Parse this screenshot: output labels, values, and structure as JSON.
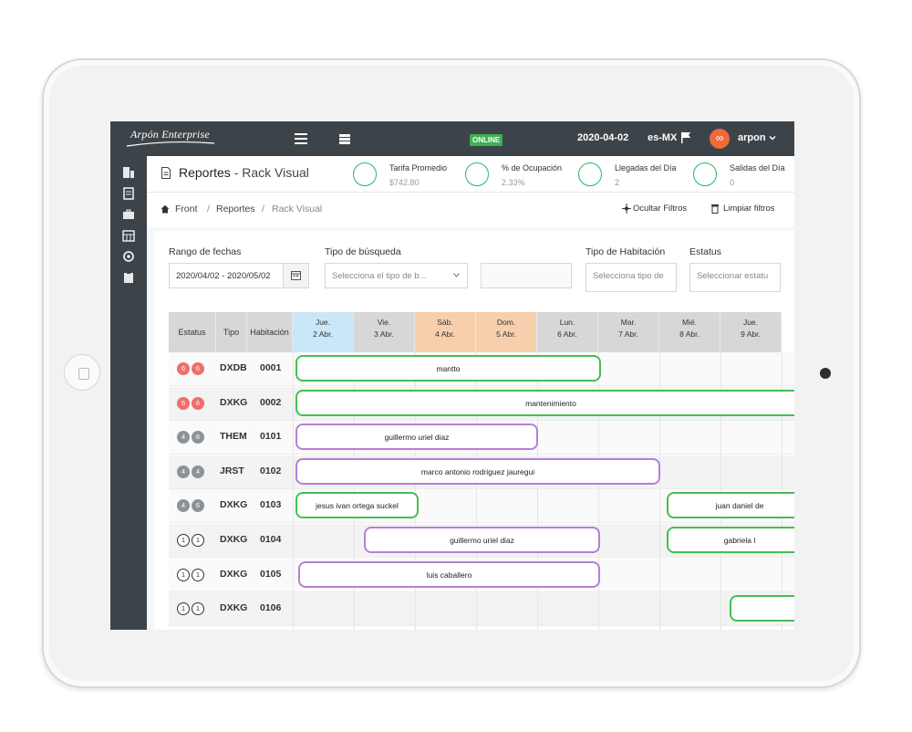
{
  "topbar": {
    "logo": "Arpón Enterprise",
    "online": "ONLINE",
    "date": "2020-04-02",
    "lang": "es-MX",
    "avatar_glyph": "∞",
    "user": "arpon"
  },
  "header": {
    "title": "Reportes",
    "subtitle": "- Rack Visual",
    "stats": [
      {
        "label": "Tarifa Promedio",
        "value": "$742.80",
        "icon": "rate-icon"
      },
      {
        "label": "% de Ocupación",
        "value": "2.33%",
        "icon": "occupancy-icon"
      },
      {
        "label": "Llegadas del Día",
        "value": "2",
        "icon": "arrivals-icon"
      },
      {
        "label": "Salidas del Día",
        "value": "0",
        "icon": "departures-icon"
      }
    ]
  },
  "breadcrumb": {
    "items": [
      "Front",
      "Reportes",
      "Rack Visual"
    ],
    "sep": "/",
    "hide_filters": "Ocultar Filtros",
    "clear_filters": "Limpiar filtros"
  },
  "filters": {
    "date_range_label": "Rango de fechas",
    "date_range_value": "2020/04/02 - 2020/05/02",
    "search_type_label": "Tipo de búsqueda",
    "search_type_placeholder": "Selecciona el tipo de b...",
    "room_type_label": "Tipo de Habitación",
    "room_type_placeholder": "Selecciona tipo de",
    "status_label": "Estatus",
    "status_placeholder": "Seleccionar estatu"
  },
  "grid": {
    "columns": [
      "Estatus",
      "Tipo",
      "Habitación"
    ],
    "days": [
      {
        "d": "Jue.",
        "n": "2 Abr.",
        "color": "#c9e7f7"
      },
      {
        "d": "Vie.",
        "n": "3 Abr.",
        "color": "#d7d7d7"
      },
      {
        "d": "Sáb.",
        "n": "4 Abr.",
        "color": "#f7cfad"
      },
      {
        "d": "Dom.",
        "n": "5 Abr.",
        "color": "#f7cfad"
      },
      {
        "d": "Lun.",
        "n": "6 Abr.",
        "color": "#d7d7d7"
      },
      {
        "d": "Mar.",
        "n": "7 Abr.",
        "color": "#d7d7d7"
      },
      {
        "d": "Mié.",
        "n": "8 Abr.",
        "color": "#d7d7d7"
      },
      {
        "d": "Jue.",
        "n": "9 Abr.",
        "color": "#d7d7d7"
      }
    ],
    "rows": [
      {
        "status": [
          "6",
          "6"
        ],
        "style": "red",
        "tipo": "DXDB",
        "hab": "0001"
      },
      {
        "status": [
          "6",
          "6"
        ],
        "style": "red",
        "tipo": "DXKG",
        "hab": "0002"
      },
      {
        "status": [
          "4",
          "6"
        ],
        "style": "grey",
        "tipo": "THEM",
        "hab": "0101"
      },
      {
        "status": [
          "4",
          "4"
        ],
        "style": "grey",
        "tipo": "JRST",
        "hab": "0102"
      },
      {
        "status": [
          "4",
          "6"
        ],
        "style": "grey",
        "tipo": "DXKG",
        "hab": "0103"
      },
      {
        "status": [
          "1",
          "1"
        ],
        "style": "outline",
        "tipo": "DXKG",
        "hab": "0104"
      },
      {
        "status": [
          "1",
          "1"
        ],
        "style": "outline",
        "tipo": "DXKG",
        "hab": "0105"
      },
      {
        "status": [
          "1",
          "1"
        ],
        "style": "outline",
        "tipo": "DXKG",
        "hab": "0106"
      }
    ],
    "bookings": [
      {
        "row": 0,
        "label": "mantto",
        "color": "green"
      },
      {
        "row": 1,
        "label": "mantenimiento",
        "color": "green"
      },
      {
        "row": 2,
        "label": "guillermo uriel diaz",
        "color": "purple"
      },
      {
        "row": 3,
        "label": "marco antonio rodriguez jauregui",
        "color": "purple"
      },
      {
        "row": 4,
        "label": "jesus ivan ortega suckel",
        "color": "green"
      },
      {
        "row": 4,
        "label": "juan daniel de",
        "color": "green"
      },
      {
        "row": 5,
        "label": "guillermo uriel diaz",
        "color": "purple"
      },
      {
        "row": 5,
        "label": "gabriela l",
        "color": "green"
      },
      {
        "row": 6,
        "label": "luis caballero",
        "color": "purple"
      },
      {
        "row": 7,
        "label": "",
        "color": "green"
      }
    ]
  }
}
